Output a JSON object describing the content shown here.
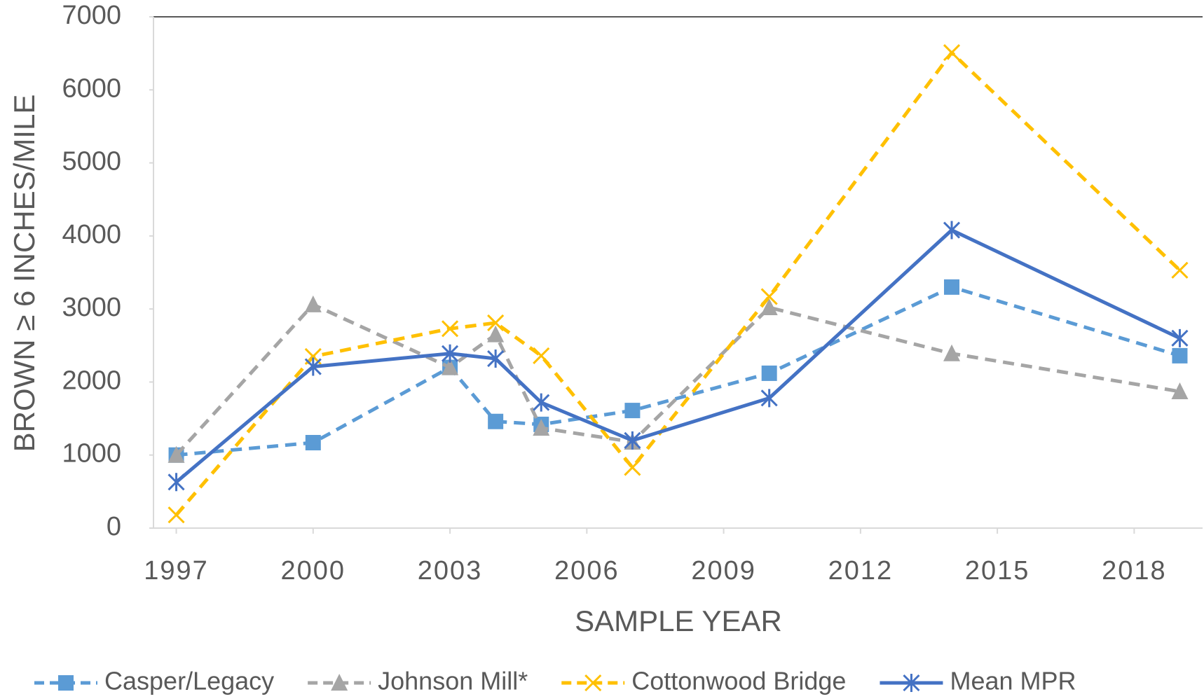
{
  "chart_data": {
    "type": "line",
    "xlabel": "SAMPLE YEAR",
    "ylabel": "BROWN ≥ 6 INCHES/MILE",
    "x": [
      1997,
      2000,
      2003,
      2004,
      2005,
      2007,
      2010,
      2014,
      2019
    ],
    "series": [
      {
        "name": "Casper/Legacy",
        "color": "#5b9bd5",
        "marker": "square",
        "dashed": true,
        "values": [
          1000,
          1170,
          2200,
          1460,
          1420,
          1610,
          2120,
          3300,
          2360
        ]
      },
      {
        "name": "Johnson Mill*",
        "color": "#a5a5a5",
        "marker": "triangle",
        "dashed": true,
        "values": [
          1000,
          3060,
          2200,
          2650,
          1370,
          1180,
          3020,
          2390,
          1870
        ]
      },
      {
        "name": "Cottonwood Bridge",
        "color": "#ffc000",
        "marker": "x",
        "dashed": true,
        "values": [
          180,
          2350,
          2730,
          2810,
          2360,
          830,
          3170,
          6510,
          3530
        ]
      },
      {
        "name": "Mean MPR",
        "color": "#4472c4",
        "marker": "star",
        "dashed": false,
        "values": [
          630,
          2210,
          2390,
          2320,
          1720,
          1200,
          1780,
          4080,
          2600
        ]
      }
    ],
    "xlim": [
      1996.5,
      2019.5
    ],
    "xticks": [
      1997,
      2000,
      2003,
      2006,
      2009,
      2012,
      2015,
      2018
    ],
    "ylim": [
      0,
      7000
    ],
    "yticks": [
      0,
      1000,
      2000,
      3000,
      4000,
      5000,
      6000,
      7000
    ],
    "grid": false,
    "legend": "bottom"
  }
}
